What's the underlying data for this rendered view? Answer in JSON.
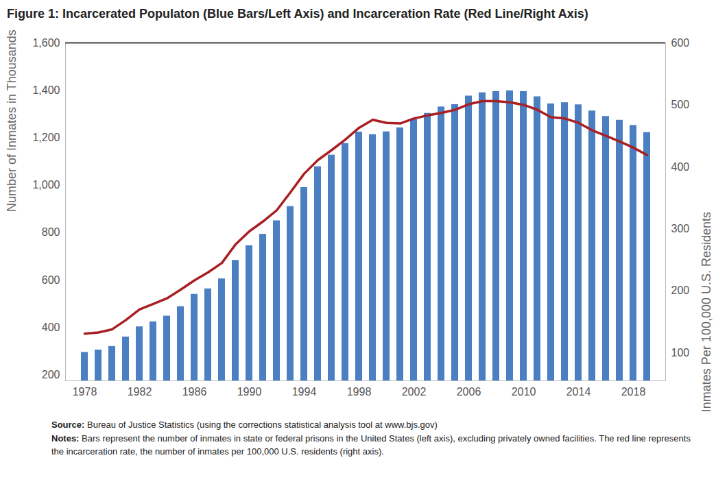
{
  "chart_data": {
    "type": "bar",
    "title": "Figure 1: Incarcerated Populaton (Blue Bars/Left Axis) and Incarceration Rate (Red Line/Right Axis)",
    "y_label": "Number of Inmates in Thousands",
    "y2_label": "Inmates Per 100,000 U.S. Residents",
    "x": [
      1978,
      1979,
      1980,
      1981,
      1982,
      1983,
      1984,
      1985,
      1986,
      1987,
      1988,
      1989,
      1990,
      1991,
      1992,
      1993,
      1994,
      1995,
      1996,
      1997,
      1998,
      1999,
      2000,
      2001,
      2002,
      2003,
      2004,
      2005,
      2006,
      2007,
      2008,
      2009,
      2010,
      2011,
      2012,
      2013,
      2014,
      2015,
      2016,
      2017,
      2018,
      2019
    ],
    "xticks": [
      1978,
      1982,
      1986,
      1990,
      1994,
      1998,
      2002,
      2006,
      2010,
      2014,
      2018
    ],
    "series": [
      {
        "type": "bar",
        "color": "#4a7fc1",
        "values": [
          295,
          305,
          320,
          360,
          403,
          424,
          448,
          488,
          540,
          563,
          605,
          683,
          745,
          793,
          850,
          910,
          990,
          1078,
          1127,
          1176,
          1224,
          1213,
          1225,
          1242,
          1277,
          1303,
          1330,
          1340,
          1376,
          1390,
          1395,
          1398,
          1395,
          1373,
          1343,
          1348,
          1339,
          1313,
          1290,
          1274,
          1252,
          1222
        ]
      },
      {
        "type": "line",
        "color": "#a81f24",
        "axis": "y2",
        "values": [
          131,
          133,
          138,
          153,
          170,
          179,
          188,
          202,
          217,
          230,
          245,
          275,
          296,
          312,
          330,
          359,
          389,
          411,
          427,
          444,
          463,
          476,
          471,
          470,
          478,
          483,
          487,
          492,
          501,
          506,
          506,
          504,
          500,
          492,
          480,
          478,
          471,
          459,
          450,
          441,
          431,
          419
        ]
      }
    ],
    "ylim": [
      175,
      1600
    ],
    "yticks": [
      200,
      400,
      600,
      800,
      {
        "value": 1000,
        "label": "1,000"
      },
      {
        "value": 1200,
        "label": "1,200"
      },
      {
        "value": 1400,
        "label": "1,400"
      },
      {
        "value": 1600,
        "label": "1,600"
      }
    ],
    "y2lim": [
      55,
      600
    ],
    "y2ticks": [
      100,
      200,
      300,
      400,
      500,
      600
    ],
    "grid": false,
    "captions": [
      {
        "label": "Source:",
        "text": "Bureau of Justice Statistics (using the corrections statistical analysis tool at www.bjs.gov)"
      },
      {
        "label": "Notes:",
        "text": "Bars represent the number of inmates in state or federal prisons in the United States (left axis), excluding privately owned facilities. The red line represents the incarceration rate, the number of inmates per 100,000 U.S. residents (right axis)."
      }
    ]
  }
}
